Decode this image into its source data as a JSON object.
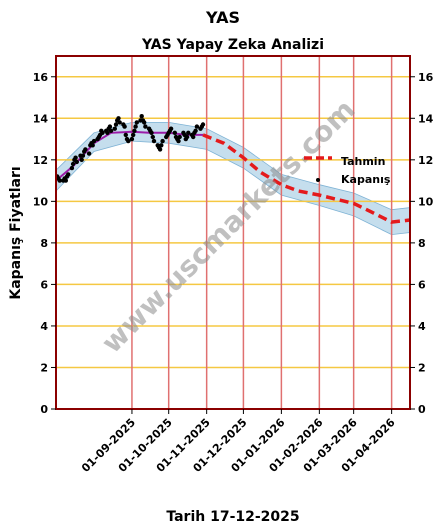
{
  "chart_data": {
    "type": "line",
    "suptitle": "YAS",
    "title": "YAS Yapay Zeka Analizi",
    "xlabel": "Tarih 17-12-2025",
    "ylabel": "Kapanış Fiyatları",
    "watermark": "www.uscmarkets.com",
    "xlim": [
      "2025-07-01",
      "2026-04-16"
    ],
    "ylim": [
      0,
      17
    ],
    "y_ticks": [
      0,
      2,
      4,
      6,
      8,
      10,
      12,
      14,
      16
    ],
    "x_ticks": [
      {
        "date": "2025-09-01",
        "label": "01-09-2025"
      },
      {
        "date": "2025-10-01",
        "label": "01-10-2025"
      },
      {
        "date": "2025-11-01",
        "label": "01-11-2025"
      },
      {
        "date": "2025-12-01",
        "label": "01-12-2025"
      },
      {
        "date": "2026-01-01",
        "label": "01-01-2026"
      },
      {
        "date": "2026-02-01",
        "label": "01-02-2026"
      },
      {
        "date": "2026-03-01",
        "label": "01-03-2026"
      },
      {
        "date": "2026-04-01",
        "label": "01-04-2026"
      }
    ],
    "grid": {
      "horizontal_color": "#f5c842",
      "vertical_color": "#e07070"
    },
    "legend": {
      "placement": "right",
      "entries": [
        {
          "label": "Tahmin",
          "color": "#e41a1c",
          "style": "dashed-line"
        },
        {
          "label": "Kapanış",
          "color": "#000000",
          "style": "dot"
        }
      ]
    },
    "colors": {
      "frame": "#8b0000",
      "fit": "#9b1ca8",
      "forecast": "#e41a1c",
      "band": "#a6cde3",
      "closes": "#000000"
    },
    "series": [
      {
        "name": "Kapanış",
        "kind": "scatter",
        "points": [
          [
            "2025-07-02",
            11.2
          ],
          [
            "2025-07-03",
            11.1
          ],
          [
            "2025-07-04",
            11.0
          ],
          [
            "2025-07-07",
            11.0
          ],
          [
            "2025-07-08",
            11.1
          ],
          [
            "2025-07-09",
            11.0
          ],
          [
            "2025-07-10",
            11.2
          ],
          [
            "2025-07-11",
            11.3
          ],
          [
            "2025-07-14",
            11.6
          ],
          [
            "2025-07-15",
            11.8
          ],
          [
            "2025-07-16",
            12.0
          ],
          [
            "2025-07-17",
            12.1
          ],
          [
            "2025-07-18",
            11.9
          ],
          [
            "2025-07-21",
            12.2
          ],
          [
            "2025-07-22",
            12.0
          ],
          [
            "2025-07-23",
            12.2
          ],
          [
            "2025-07-24",
            12.4
          ],
          [
            "2025-07-25",
            12.5
          ],
          [
            "2025-07-28",
            12.3
          ],
          [
            "2025-07-29",
            12.7
          ],
          [
            "2025-07-30",
            12.8
          ],
          [
            "2025-07-31",
            12.7
          ],
          [
            "2025-08-01",
            12.9
          ],
          [
            "2025-08-04",
            13.0
          ],
          [
            "2025-08-05",
            13.1
          ],
          [
            "2025-08-06",
            13.2
          ],
          [
            "2025-08-07",
            13.4
          ],
          [
            "2025-08-08",
            13.3
          ],
          [
            "2025-08-11",
            13.4
          ],
          [
            "2025-08-12",
            13.3
          ],
          [
            "2025-08-13",
            13.5
          ],
          [
            "2025-08-14",
            13.6
          ],
          [
            "2025-08-15",
            13.4
          ],
          [
            "2025-08-18",
            13.5
          ],
          [
            "2025-08-19",
            13.7
          ],
          [
            "2025-08-20",
            13.9
          ],
          [
            "2025-08-21",
            14.0
          ],
          [
            "2025-08-22",
            13.8
          ],
          [
            "2025-08-25",
            13.7
          ],
          [
            "2025-08-26",
            13.6
          ],
          [
            "2025-08-27",
            13.2
          ],
          [
            "2025-08-28",
            13.0
          ],
          [
            "2025-08-29",
            12.9
          ],
          [
            "2025-09-01",
            13.0
          ],
          [
            "2025-09-02",
            13.2
          ],
          [
            "2025-09-03",
            13.4
          ],
          [
            "2025-09-04",
            13.6
          ],
          [
            "2025-09-05",
            13.8
          ],
          [
            "2025-09-08",
            13.9
          ],
          [
            "2025-09-09",
            14.1
          ],
          [
            "2025-09-10",
            13.9
          ],
          [
            "2025-09-11",
            13.8
          ],
          [
            "2025-09-12",
            13.6
          ],
          [
            "2025-09-15",
            13.5
          ],
          [
            "2025-09-16",
            13.4
          ],
          [
            "2025-09-17",
            13.3
          ],
          [
            "2025-09-18",
            13.1
          ],
          [
            "2025-09-19",
            12.9
          ],
          [
            "2025-09-22",
            12.7
          ],
          [
            "2025-09-23",
            12.6
          ],
          [
            "2025-09-24",
            12.5
          ],
          [
            "2025-09-25",
            12.7
          ],
          [
            "2025-09-26",
            12.9
          ],
          [
            "2025-09-29",
            13.1
          ],
          [
            "2025-09-30",
            13.2
          ],
          [
            "2025-10-01",
            13.3
          ],
          [
            "2025-10-02",
            13.4
          ],
          [
            "2025-10-03",
            13.5
          ],
          [
            "2025-10-06",
            13.3
          ],
          [
            "2025-10-07",
            13.1
          ],
          [
            "2025-10-08",
            13.0
          ],
          [
            "2025-10-09",
            12.9
          ],
          [
            "2025-10-10",
            13.1
          ],
          [
            "2025-10-13",
            13.3
          ],
          [
            "2025-10-14",
            13.2
          ],
          [
            "2025-10-15",
            13.0
          ],
          [
            "2025-10-16",
            13.1
          ],
          [
            "2025-10-17",
            13.3
          ],
          [
            "2025-10-20",
            13.2
          ],
          [
            "2025-10-21",
            13.1
          ],
          [
            "2025-10-22",
            13.3
          ],
          [
            "2025-10-23",
            13.4
          ],
          [
            "2025-10-24",
            13.6
          ],
          [
            "2025-10-27",
            13.5
          ],
          [
            "2025-10-28",
            13.6
          ],
          [
            "2025-10-29",
            13.7
          ]
        ]
      },
      {
        "name": "Fit",
        "kind": "line",
        "points": [
          [
            "2025-07-01",
            11.0
          ],
          [
            "2025-07-15",
            11.7
          ],
          [
            "2025-08-01",
            12.8
          ],
          [
            "2025-08-15",
            13.3
          ],
          [
            "2025-09-01",
            13.35
          ],
          [
            "2025-09-15",
            13.3
          ],
          [
            "2025-10-01",
            13.3
          ],
          [
            "2025-10-15",
            13.2
          ],
          [
            "2025-10-29",
            13.2
          ]
        ]
      },
      {
        "name": "Tahmin",
        "kind": "line",
        "points": [
          [
            "2025-10-29",
            13.2
          ],
          [
            "2025-11-15",
            12.8
          ],
          [
            "2025-12-01",
            12.1
          ],
          [
            "2025-12-15",
            11.4
          ],
          [
            "2026-01-01",
            10.8
          ],
          [
            "2026-01-15",
            10.5
          ],
          [
            "2026-02-01",
            10.3
          ],
          [
            "2026-02-15",
            10.1
          ],
          [
            "2026-03-01",
            9.9
          ],
          [
            "2026-03-15",
            9.5
          ],
          [
            "2026-04-01",
            9.0
          ],
          [
            "2026-04-16",
            9.1
          ]
        ]
      },
      {
        "name": "Band",
        "kind": "area",
        "upper": [
          [
            "2025-07-01",
            11.5
          ],
          [
            "2025-08-01",
            13.3
          ],
          [
            "2025-09-01",
            13.8
          ],
          [
            "2025-10-01",
            13.8
          ],
          [
            "2025-11-01",
            13.5
          ],
          [
            "2025-12-01",
            12.6
          ],
          [
            "2026-01-01",
            11.3
          ],
          [
            "2026-02-01",
            10.8
          ],
          [
            "2026-03-01",
            10.4
          ],
          [
            "2026-04-01",
            9.6
          ],
          [
            "2026-04-16",
            9.7
          ]
        ],
        "lower": [
          [
            "2025-07-01",
            10.5
          ],
          [
            "2025-08-01",
            12.4
          ],
          [
            "2025-09-01",
            12.9
          ],
          [
            "2025-10-01",
            12.8
          ],
          [
            "2025-11-01",
            12.5
          ],
          [
            "2025-12-01",
            11.6
          ],
          [
            "2026-01-01",
            10.3
          ],
          [
            "2026-02-01",
            9.8
          ],
          [
            "2026-03-01",
            9.3
          ],
          [
            "2026-04-01",
            8.4
          ],
          [
            "2026-04-16",
            8.5
          ]
        ]
      }
    ]
  }
}
